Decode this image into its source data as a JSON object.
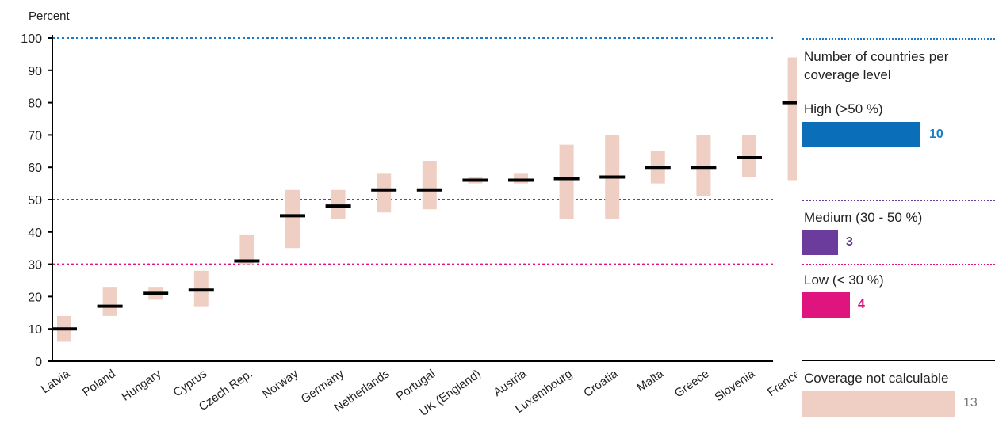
{
  "chart_data": {
    "type": "range_bar_with_marker",
    "ylabel": "Percent",
    "ylim": [
      0,
      100
    ],
    "yticks": [
      0,
      10,
      20,
      30,
      40,
      50,
      60,
      70,
      80,
      90,
      100
    ],
    "categories": [
      "Latvia",
      "Poland",
      "Hungary",
      "Cyprus",
      "Czech Rep.",
      "Norway",
      "Germany",
      "Netherlands",
      "Portugal",
      "UK (England)",
      "Austria",
      "Luxembourg",
      "Croatia",
      "Malta",
      "Greece",
      "Slovenia",
      "France"
    ],
    "values": [
      10,
      17,
      21,
      22,
      31,
      45,
      48,
      53,
      53,
      56,
      56,
      56.5,
      57,
      60,
      60,
      63,
      80
    ],
    "range_low": [
      6,
      14,
      19,
      17,
      30,
      35,
      44,
      46,
      47,
      55,
      55,
      44,
      44,
      55,
      51,
      57,
      56
    ],
    "range_high": [
      14,
      23,
      23,
      28,
      39,
      53,
      53,
      58,
      62,
      57,
      58,
      67,
      70,
      65,
      70,
      70,
      94
    ],
    "thresholds": [
      {
        "value": 100,
        "color": "#1f77c8"
      },
      {
        "value": 50,
        "color": "#6a3d9a"
      },
      {
        "value": 30,
        "color": "#e0147f"
      }
    ],
    "colors": {
      "range": "#efcfc3",
      "marker": "#000000",
      "axis": "#000000"
    }
  },
  "legend": {
    "title": "Number of countries per coverage level",
    "items": [
      {
        "label": "High (>50 %)",
        "count": "10",
        "color": "#0a6fb8",
        "count_color": "#1a7dc4"
      },
      {
        "label": "Medium (30 - 50 %)",
        "count": "3",
        "color": "#6b3c9c",
        "count_color": "#5c3c9c"
      },
      {
        "label": "Low (< 30 %)",
        "count": "4",
        "color": "#e0147f",
        "count_color": "#d4137a"
      },
      {
        "label": "Coverage not calculable",
        "count": "13",
        "color": "#efcfc3",
        "count_color": "#777777"
      }
    ]
  }
}
